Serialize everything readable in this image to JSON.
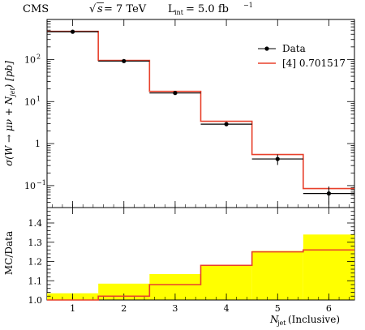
{
  "header": {
    "experiment": "CMS",
    "energy_sqrt": "s",
    "energy_rest": " = 7 TeV",
    "lumi_label_L": "L",
    "lumi_label_sub": "int",
    "lumi_rest": " = 5.0 fb",
    "lumi_exp": "−1"
  },
  "chart_data": [
    {
      "type": "line",
      "panel": "main",
      "ylabel": "σ(W → μν + N_jet) [pb]",
      "yscale": "log",
      "ylim": [
        0.03,
        900
      ],
      "xlim": [
        0.5,
        6.5
      ],
      "ytick_labels": [
        {
          "value": 100,
          "base": "10",
          "exp": "2"
        },
        {
          "value": 10,
          "base": "10",
          "exp": "1"
        },
        {
          "value": 1,
          "base": "1",
          "exp": ""
        },
        {
          "value": 0.1,
          "base": "10",
          "exp": "−1"
        }
      ],
      "legend": {
        "placement": "top-right"
      },
      "series": [
        {
          "name": "Data",
          "style": "points",
          "color": "#000000",
          "x": [
            1,
            2,
            3,
            4,
            5,
            6
          ],
          "y": [
            460,
            92,
            16,
            2.9,
            0.43,
            0.065
          ],
          "err_lo": [
            20,
            4,
            1,
            0.25,
            0.12,
            0.03
          ],
          "err_hi": [
            20,
            4,
            1,
            0.25,
            0.12,
            0.03
          ],
          "bin_lo": [
            0.5,
            1.5,
            2.5,
            3.5,
            4.5,
            5.5
          ],
          "bin_hi": [
            1.5,
            2.5,
            3.5,
            4.5,
            5.5,
            6.5
          ]
        },
        {
          "name": "[4] 0.701517",
          "style": "step",
          "color": "#e8412c",
          "bin_lo": [
            0.5,
            1.5,
            2.5,
            3.5,
            4.5,
            5.5
          ],
          "bin_hi": [
            1.5,
            2.5,
            3.5,
            4.5,
            5.5,
            6.5
          ],
          "y": [
            470,
            95,
            17.5,
            3.4,
            0.55,
            0.085
          ]
        }
      ]
    },
    {
      "type": "line",
      "panel": "ratio",
      "ylabel": "MC/Data",
      "xlabel_base": "N",
      "xlabel_sub": "jet",
      "xlabel_rest": " (Inclusive)",
      "xlim": [
        0.5,
        6.5
      ],
      "ylim": [
        1.0,
        1.48
      ],
      "xticks": [
        1,
        2,
        3,
        4,
        5,
        6
      ],
      "yticks": [
        1.0,
        1.1,
        1.2,
        1.3,
        1.4
      ],
      "ytick_labels": [
        "1.0",
        "1.1",
        "1.2",
        "1.3",
        "1.4"
      ],
      "band": {
        "color": "#ffff00",
        "bin_lo": [
          0.5,
          1.5,
          2.5,
          3.5,
          4.5,
          5.5
        ],
        "bin_hi": [
          1.5,
          2.5,
          3.5,
          4.5,
          5.5,
          6.5
        ],
        "hi": [
          1.035,
          1.085,
          1.135,
          1.18,
          1.255,
          1.34
        ]
      },
      "series": [
        {
          "name": "[4] 0.701517",
          "style": "step",
          "color": "#e8412c",
          "bin_lo": [
            0.5,
            1.5,
            2.5,
            3.5,
            4.5,
            5.5
          ],
          "bin_hi": [
            1.5,
            2.5,
            3.5,
            4.5,
            5.5,
            6.5
          ],
          "y": [
            1.0,
            1.02,
            1.08,
            1.18,
            1.25,
            1.26
          ]
        }
      ]
    }
  ]
}
